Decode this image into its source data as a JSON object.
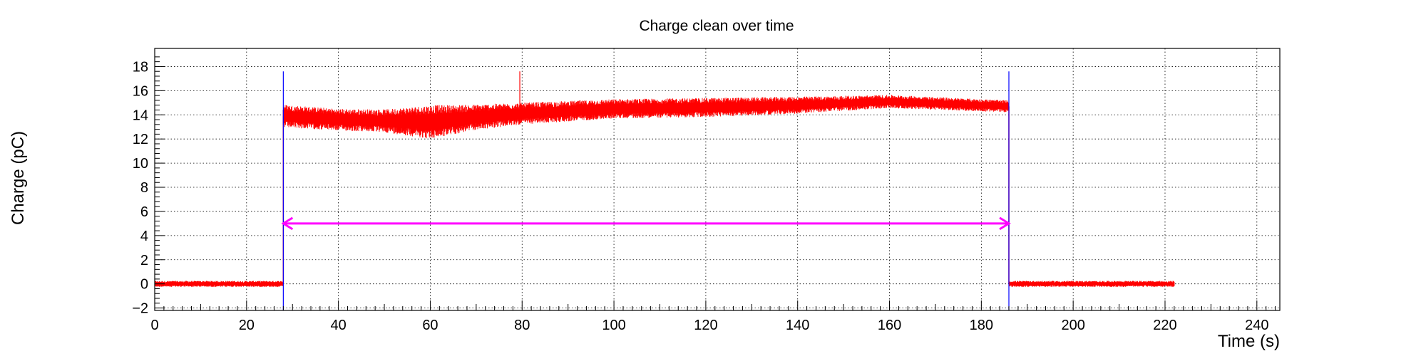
{
  "chart_data": {
    "type": "line",
    "title": "Charge clean over time",
    "xlabel": "Time (s)",
    "ylabel": "Charge (pC)",
    "xlim": [
      0,
      245
    ],
    "ylim": [
      -2.2,
      19.5
    ],
    "x_ticks": [
      0,
      20,
      40,
      60,
      80,
      100,
      120,
      140,
      160,
      180,
      200,
      220,
      240
    ],
    "x_tick_labels": [
      "0",
      "20",
      "40",
      "60",
      "80",
      "100",
      "120",
      "140",
      "160",
      "180",
      "200",
      "220",
      "240"
    ],
    "y_ticks": [
      -2,
      0,
      2,
      4,
      6,
      8,
      10,
      12,
      14,
      16,
      18
    ],
    "y_tick_labels": [
      "−2",
      "0",
      "2",
      "4",
      "6",
      "8",
      "10",
      "12",
      "14",
      "16",
      "18"
    ],
    "grid": true,
    "legend": "none",
    "series": [
      {
        "color": "#ff0000",
        "segments": [
          {
            "x_start": 0,
            "x_end": 28,
            "mean": 0.0,
            "band": 0.5
          },
          {
            "x_start": 28,
            "x_end": 186,
            "profile": [
              {
                "x": 28,
                "mean": 13.9,
                "band": 1.9
              },
              {
                "x": 40,
                "mean": 13.6,
                "band": 1.8
              },
              {
                "x": 50,
                "mean": 13.5,
                "band": 1.9
              },
              {
                "x": 60,
                "mean": 13.4,
                "band": 2.8
              },
              {
                "x": 70,
                "mean": 13.8,
                "band": 2.1
              },
              {
                "x": 80,
                "mean": 14.1,
                "band": 1.8
              },
              {
                "x": 100,
                "mean": 14.5,
                "band": 1.6
              },
              {
                "x": 120,
                "mean": 14.6,
                "band": 1.6
              },
              {
                "x": 140,
                "mean": 14.8,
                "band": 1.4
              },
              {
                "x": 160,
                "mean": 15.1,
                "band": 1.1
              },
              {
                "x": 186,
                "mean": 14.7,
                "band": 1.0
              }
            ]
          },
          {
            "x_start": 186,
            "x_end": 222,
            "mean": 0.0,
            "band": 0.5
          }
        ],
        "spikes": [
          {
            "x": 79.5,
            "y_from": 14.2,
            "y_to": 17.6
          }
        ]
      }
    ],
    "markers": [
      {
        "type": "vline",
        "x": 28,
        "y_from": -2.2,
        "y_to": 17.6,
        "color": "#0000ff"
      },
      {
        "type": "vline",
        "x": 186,
        "y_from": -2.2,
        "y_to": 17.6,
        "color": "#0000ff"
      },
      {
        "type": "double-arrow",
        "x_from": 28,
        "x_to": 186,
        "y": 5,
        "color": "#ff00ff"
      }
    ]
  }
}
